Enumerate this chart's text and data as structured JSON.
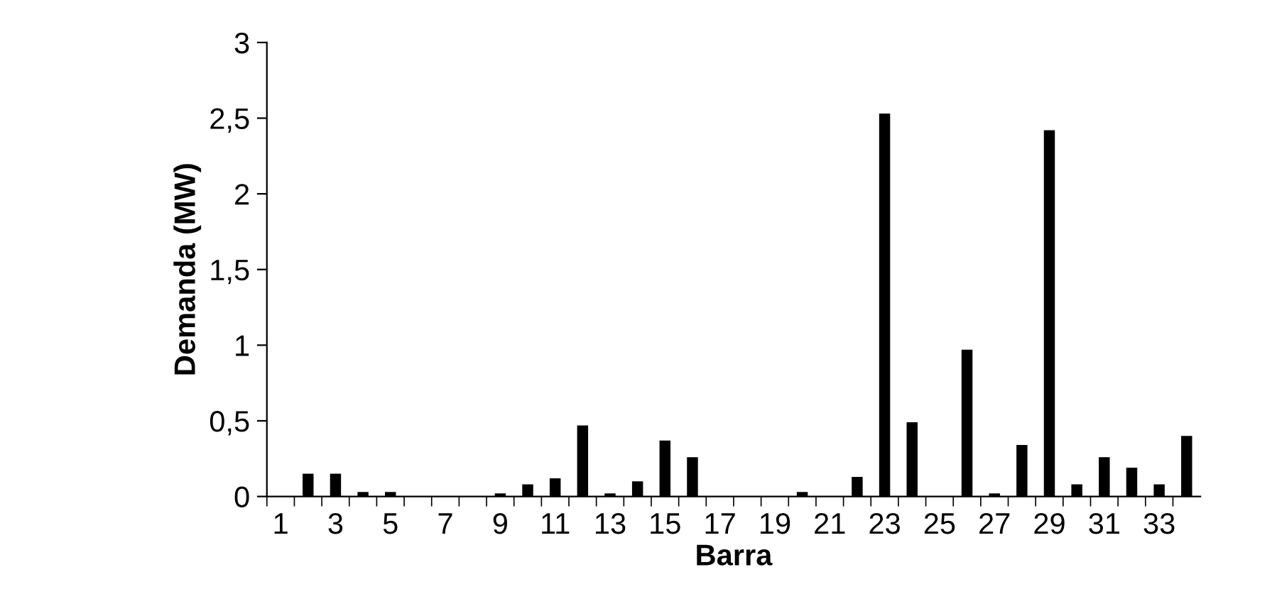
{
  "chart_data": {
    "type": "bar",
    "xlabel": "Barra",
    "ylabel": "Demanda (MW)",
    "categories": [
      "1",
      null,
      "3",
      null,
      "5",
      null,
      "7",
      null,
      "9",
      null,
      "11",
      null,
      "13",
      null,
      "15",
      null,
      "17",
      null,
      "19",
      null,
      "21",
      null,
      "23",
      null,
      "25",
      null,
      "27",
      null,
      "29",
      null,
      "31",
      null,
      "33",
      null
    ],
    "values": [
      0,
      0.15,
      0.15,
      0.03,
      0.03,
      0,
      0,
      0,
      0.02,
      0.08,
      0.12,
      0.47,
      0.02,
      0.1,
      0.37,
      0.26,
      0,
      0,
      0,
      0.03,
      0,
      0.13,
      2.53,
      0.49,
      0,
      0.97,
      0.02,
      0.34,
      2.42,
      0.08,
      0.26,
      0.19,
      0.08,
      0.4
    ],
    "color": "#000000",
    "ylim": [
      0,
      3
    ],
    "yticks": [
      0,
      {
        "value": 0.5,
        "label": "0,5"
      },
      1,
      {
        "value": 1.5,
        "label": "1,5"
      },
      2,
      {
        "value": 2.5,
        "label": "2,5"
      },
      3
    ],
    "grid": false,
    "legend": false
  }
}
